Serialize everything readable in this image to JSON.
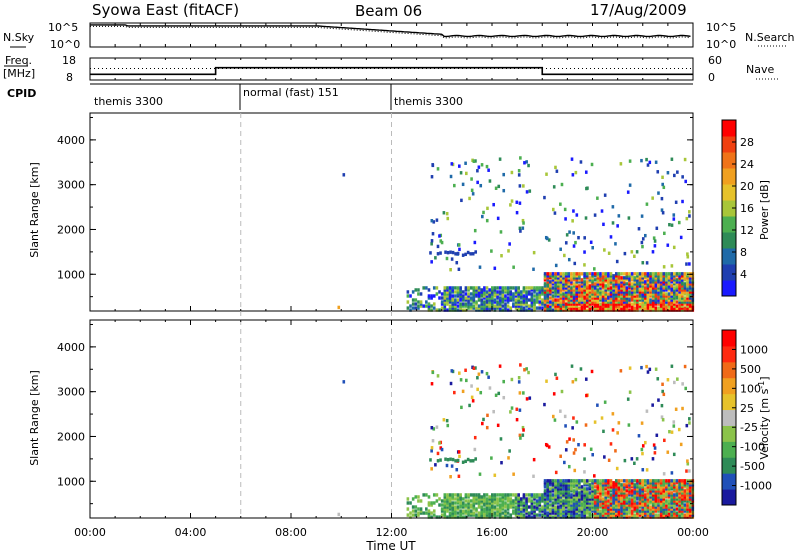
{
  "header": {
    "title": "Syowa East (fitACF)",
    "beam": "Beam 06",
    "date": "17/Aug/2009"
  },
  "top_panels": {
    "nsky_label": "N.Sky",
    "nsky_ticks": [
      "10^5",
      "10^0"
    ],
    "nsearch_label": "N.Search",
    "nsearch_ticks": [
      "10^5",
      "10^0"
    ],
    "freq_label_1": "Freq.",
    "freq_label_2": "[MHz]",
    "freq_ticks": [
      "18",
      "8"
    ],
    "nave_label": "Nave",
    "nave_ticks": [
      "60",
      "0"
    ],
    "cpid_label": "CPID",
    "cpid_segments": [
      {
        "label": "themis 3300",
        "start": 0,
        "end": 6
      },
      {
        "label": "normal (fast) 151",
        "start": 6,
        "end": 12
      },
      {
        "label": "themis 3300",
        "start": 12,
        "end": 24
      }
    ]
  },
  "time_axis": {
    "label": "Time UT",
    "ticks": [
      "00:00",
      "04:00",
      "08:00",
      "12:00",
      "16:00",
      "20:00",
      "00:00"
    ],
    "range_hours": [
      0,
      24
    ]
  },
  "chart_data": [
    {
      "type": "heatmap",
      "title": "",
      "xlabel": "Time UT",
      "ylabel": "Slant Range [km]",
      "xlim": [
        0,
        24
      ],
      "ylim": [
        180,
        4600
      ],
      "y_ticks": [
        "1000",
        "2000",
        "3000",
        "4000"
      ],
      "colorbar": {
        "label": "Power [dB]",
        "ticks": [
          "4",
          "8",
          "12",
          "16",
          "20",
          "24",
          "28"
        ],
        "colors": [
          "#1a1aff",
          "#1f3fb0",
          "#1f6aa8",
          "#2e8b57",
          "#4caf50",
          "#a8c639",
          "#e6c22b",
          "#f0a020",
          "#f07318",
          "#f04010",
          "#ff0000"
        ]
      }
    },
    {
      "type": "heatmap",
      "title": "",
      "xlabel": "Time UT",
      "ylabel": "Slant Range [km]",
      "xlim": [
        0,
        24
      ],
      "ylim": [
        180,
        4600
      ],
      "y_ticks": [
        "1000",
        "2000",
        "3000",
        "4000"
      ],
      "colorbar": {
        "label": "Velocity [m s^-1]",
        "ticks": [
          "1000",
          "500",
          "100",
          "25",
          "-25",
          "-100",
          "-500",
          "-1000"
        ],
        "colors": [
          "#1a1a9e",
          "#2050b8",
          "#2e8b57",
          "#4caf50",
          "#8bc34a",
          "#bdbdbd",
          "#e6c22b",
          "#f0a020",
          "#f06a18",
          "#ff2a10",
          "#ff0000"
        ]
      }
    }
  ]
}
